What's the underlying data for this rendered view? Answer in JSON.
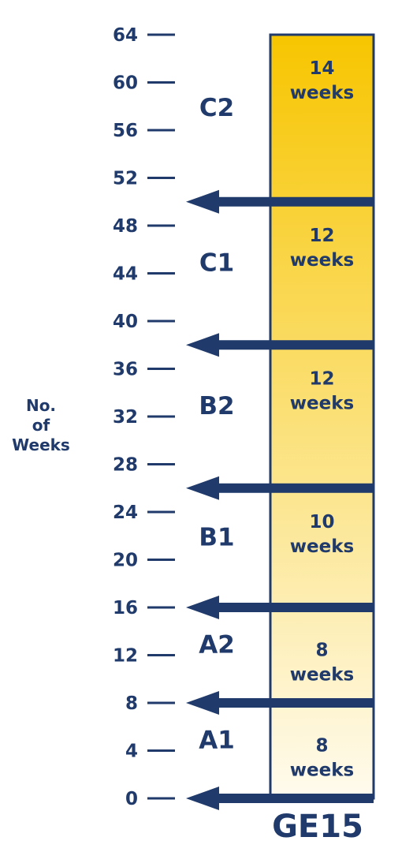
{
  "chart_data": {
    "type": "bar",
    "ylabel": [
      "No.",
      "of",
      "Weeks"
    ],
    "ylim": [
      0,
      64
    ],
    "y_ticks": [
      0,
      4,
      8,
      12,
      16,
      20,
      24,
      28,
      32,
      36,
      40,
      44,
      48,
      52,
      56,
      60,
      64
    ],
    "column_label": "GE15",
    "stages": [
      {
        "level": "A1",
        "start": 0,
        "end": 8,
        "weeks": 8,
        "line1": "8",
        "line2": "weeks"
      },
      {
        "level": "A2",
        "start": 8,
        "end": 16,
        "weeks": 8,
        "line1": "8",
        "line2": "weeks"
      },
      {
        "level": "B1",
        "start": 16,
        "end": 26,
        "weeks": 10,
        "line1": "10",
        "line2": "weeks"
      },
      {
        "level": "B2",
        "start": 26,
        "end": 38,
        "weeks": 12,
        "line1": "12",
        "line2": "weeks"
      },
      {
        "level": "C1",
        "start": 38,
        "end": 50,
        "weeks": 12,
        "line1": "12",
        "line2": "weeks"
      },
      {
        "level": "C2",
        "start": 50,
        "end": 64,
        "weeks": 14,
        "line1": "14",
        "line2": "weeks"
      }
    ],
    "colors": {
      "navy": "#1f3a6b",
      "gold_top": "#f7c500",
      "gold_bottom": "#fffbee"
    }
  }
}
